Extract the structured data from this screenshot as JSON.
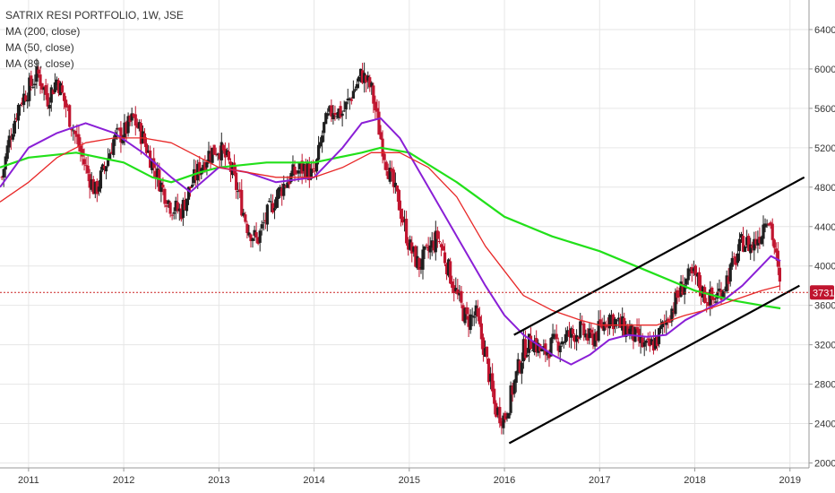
{
  "header": {
    "title": "SATRIX RESI PORTFOLIO, 1W, JSE",
    "indicators": [
      "MA (200, close)",
      "MA (50, close)",
      "MA (89, close)"
    ]
  },
  "colors": {
    "up": "#1f1f1f",
    "down": "#c0152f",
    "ma200": "#22e01a",
    "ma50": "#8a1fd6",
    "ma89": "#e82828",
    "channel": "#000000",
    "price_line": "#cc2222",
    "grid": "#e6e6e6"
  },
  "chart_data": {
    "type": "candlestick",
    "title": "SATRIX RESI PORTFOLIO, 1W, JSE",
    "x_ticks": [
      "2011",
      "2012",
      "2013",
      "2014",
      "2015",
      "2016",
      "2017",
      "2018",
      "2019"
    ],
    "y_ticks": [
      2000,
      2400,
      2800,
      3200,
      3600,
      4000,
      4400,
      4800,
      5200,
      5600,
      6000,
      6400
    ],
    "ylim": [
      1950,
      6700
    ],
    "xlim": [
      2010.7,
      2019.2
    ],
    "last_price": 3731,
    "last_price_label": "3731",
    "price_path": [
      [
        2010.72,
        4900
      ],
      [
        2010.8,
        5300
      ],
      [
        2010.9,
        5650
      ],
      [
        2011.0,
        5800
      ],
      [
        2011.1,
        5950
      ],
      [
        2011.2,
        5700
      ],
      [
        2011.3,
        5900
      ],
      [
        2011.4,
        5600
      ],
      [
        2011.5,
        5300
      ],
      [
        2011.6,
        5000
      ],
      [
        2011.7,
        4750
      ],
      [
        2011.8,
        5000
      ],
      [
        2011.9,
        5300
      ],
      [
        2012.0,
        5350
      ],
      [
        2012.1,
        5500
      ],
      [
        2012.2,
        5300
      ],
      [
        2012.3,
        5050
      ],
      [
        2012.4,
        4800
      ],
      [
        2012.5,
        4600
      ],
      [
        2012.6,
        4550
      ],
      [
        2012.7,
        4800
      ],
      [
        2012.8,
        5000
      ],
      [
        2012.9,
        5150
      ],
      [
        2013.0,
        5200
      ],
      [
        2013.1,
        5050
      ],
      [
        2013.2,
        4750
      ],
      [
        2013.3,
        4400
      ],
      [
        2013.4,
        4250
      ],
      [
        2013.5,
        4500
      ],
      [
        2013.6,
        4700
      ],
      [
        2013.7,
        4850
      ],
      [
        2013.8,
        4950
      ],
      [
        2013.9,
        5000
      ],
      [
        2014.0,
        4900
      ],
      [
        2014.1,
        5400
      ],
      [
        2014.2,
        5600
      ],
      [
        2014.3,
        5550
      ],
      [
        2014.4,
        5750
      ],
      [
        2014.5,
        5950
      ],
      [
        2014.6,
        5800
      ],
      [
        2014.7,
        5300
      ],
      [
        2014.8,
        4900
      ],
      [
        2014.9,
        4600
      ],
      [
        2015.0,
        4200
      ],
      [
        2015.1,
        4000
      ],
      [
        2015.2,
        4150
      ],
      [
        2015.3,
        4300
      ],
      [
        2015.4,
        4000
      ],
      [
        2015.5,
        3700
      ],
      [
        2015.6,
        3450
      ],
      [
        2015.7,
        3500
      ],
      [
        2015.8,
        3100
      ],
      [
        2015.9,
        2550
      ],
      [
        2016.0,
        2450
      ],
      [
        2016.1,
        2800
      ],
      [
        2016.2,
        3150
      ],
      [
        2016.3,
        3250
      ],
      [
        2016.4,
        3100
      ],
      [
        2016.5,
        3200
      ],
      [
        2016.6,
        3250
      ],
      [
        2016.7,
        3300
      ],
      [
        2016.8,
        3350
      ],
      [
        2016.9,
        3250
      ],
      [
        2017.0,
        3350
      ],
      [
        2017.1,
        3500
      ],
      [
        2017.2,
        3400
      ],
      [
        2017.3,
        3350
      ],
      [
        2017.4,
        3250
      ],
      [
        2017.5,
        3150
      ],
      [
        2017.6,
        3250
      ],
      [
        2017.7,
        3450
      ],
      [
        2017.8,
        3650
      ],
      [
        2017.9,
        3850
      ],
      [
        2018.0,
        3900
      ],
      [
        2018.1,
        3700
      ],
      [
        2018.2,
        3650
      ],
      [
        2018.3,
        3800
      ],
      [
        2018.4,
        4000
      ],
      [
        2018.5,
        4250
      ],
      [
        2018.6,
        4200
      ],
      [
        2018.7,
        4350
      ],
      [
        2018.75,
        4550
      ],
      [
        2018.8,
        4400
      ],
      [
        2018.85,
        4100
      ],
      [
        2018.9,
        3731
      ]
    ],
    "series": [
      {
        "name": "MA (200, close)",
        "color": "#22e01a",
        "points": [
          [
            2010.7,
            5000
          ],
          [
            2011.0,
            5100
          ],
          [
            2011.5,
            5150
          ],
          [
            2012.0,
            5050
          ],
          [
            2012.3,
            4900
          ],
          [
            2012.5,
            4850
          ],
          [
            2012.8,
            4950
          ],
          [
            2013.0,
            5000
          ],
          [
            2013.5,
            5050
          ],
          [
            2014.0,
            5050
          ],
          [
            2014.5,
            5150
          ],
          [
            2014.7,
            5200
          ],
          [
            2015.0,
            5150
          ],
          [
            2015.5,
            4850
          ],
          [
            2016.0,
            4500
          ],
          [
            2016.5,
            4300
          ],
          [
            2017.0,
            4150
          ],
          [
            2017.5,
            3950
          ],
          [
            2018.0,
            3750
          ],
          [
            2018.4,
            3650
          ],
          [
            2018.7,
            3600
          ],
          [
            2018.9,
            3570
          ]
        ]
      },
      {
        "name": "MA (50, close)",
        "color": "#8a1fd6",
        "points": [
          [
            2010.7,
            4800
          ],
          [
            2011.0,
            5200
          ],
          [
            2011.3,
            5350
          ],
          [
            2011.6,
            5450
          ],
          [
            2011.9,
            5350
          ],
          [
            2012.2,
            5150
          ],
          [
            2012.5,
            4900
          ],
          [
            2012.7,
            4750
          ],
          [
            2013.0,
            5000
          ],
          [
            2013.3,
            4950
          ],
          [
            2013.6,
            4850
          ],
          [
            2014.0,
            4900
          ],
          [
            2014.3,
            5200
          ],
          [
            2014.5,
            5450
          ],
          [
            2014.7,
            5500
          ],
          [
            2014.9,
            5300
          ],
          [
            2015.2,
            4800
          ],
          [
            2015.5,
            4300
          ],
          [
            2015.8,
            3800
          ],
          [
            2016.0,
            3500
          ],
          [
            2016.2,
            3300
          ],
          [
            2016.5,
            3100
          ],
          [
            2016.7,
            3000
          ],
          [
            2016.9,
            3100
          ],
          [
            2017.1,
            3250
          ],
          [
            2017.3,
            3300
          ],
          [
            2017.5,
            3280
          ],
          [
            2017.7,
            3300
          ],
          [
            2017.9,
            3450
          ],
          [
            2018.1,
            3550
          ],
          [
            2018.3,
            3650
          ],
          [
            2018.5,
            3800
          ],
          [
            2018.7,
            4000
          ],
          [
            2018.8,
            4100
          ],
          [
            2018.9,
            4050
          ]
        ]
      },
      {
        "name": "MA (89, close)",
        "color": "#e82828",
        "points": [
          [
            2010.7,
            4650
          ],
          [
            2011.0,
            4850
          ],
          [
            2011.3,
            5100
          ],
          [
            2011.6,
            5250
          ],
          [
            2011.9,
            5300
          ],
          [
            2012.2,
            5300
          ],
          [
            2012.5,
            5250
          ],
          [
            2012.8,
            5100
          ],
          [
            2013.0,
            5000
          ],
          [
            2013.3,
            4950
          ],
          [
            2013.6,
            4900
          ],
          [
            2014.0,
            4900
          ],
          [
            2014.3,
            5000
          ],
          [
            2014.6,
            5150
          ],
          [
            2014.9,
            5150
          ],
          [
            2015.2,
            5000
          ],
          [
            2015.5,
            4700
          ],
          [
            2015.8,
            4200
          ],
          [
            2016.0,
            3950
          ],
          [
            2016.2,
            3700
          ],
          [
            2016.5,
            3550
          ],
          [
            2016.8,
            3450
          ],
          [
            2017.0,
            3400
          ],
          [
            2017.3,
            3400
          ],
          [
            2017.6,
            3400
          ],
          [
            2017.9,
            3500
          ],
          [
            2018.1,
            3550
          ],
          [
            2018.4,
            3650
          ],
          [
            2018.7,
            3750
          ],
          [
            2018.9,
            3800
          ]
        ]
      }
    ],
    "channel_lines": [
      [
        [
          2016.05,
          2200
        ],
        [
          2019.1,
          3800
        ]
      ],
      [
        [
          2016.1,
          3300
        ],
        [
          2019.15,
          4900
        ]
      ]
    ]
  }
}
